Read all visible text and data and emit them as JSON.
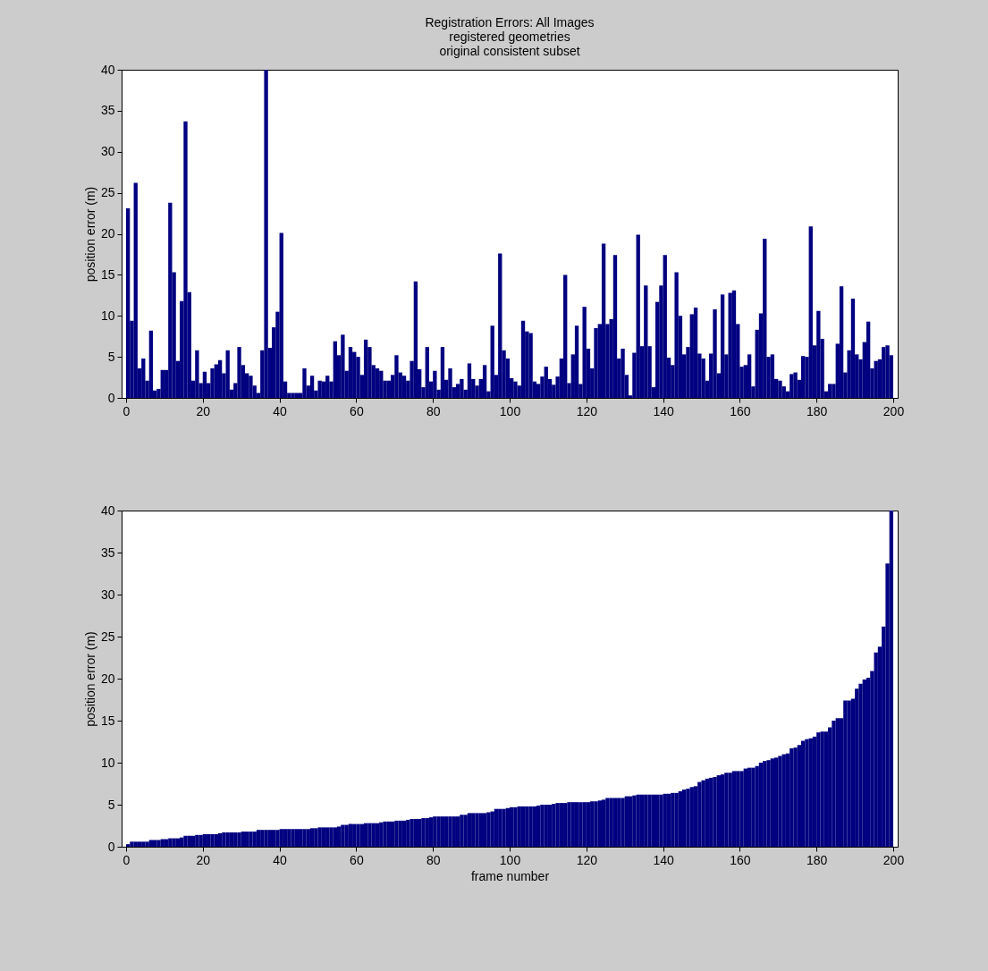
{
  "chart_data": [
    {
      "type": "bar",
      "title": "Registration Errors: All Images",
      "subtitle": "registered geometries\noriginal consistent subset",
      "ylabel": "position error (m)",
      "color": "#000080",
      "x": [
        0.5,
        1.5,
        2.5,
        3.5,
        4.5,
        5.5,
        6.5,
        7.5,
        8.5,
        9.5,
        10.5,
        11.5,
        12.5,
        13.5,
        14.5,
        15.5,
        16.5,
        17.5,
        18.5,
        19.5,
        20.5,
        21.5,
        22.5,
        23.5,
        24.5,
        25.5,
        26.5,
        27.5,
        28.5,
        29.5,
        30.5,
        31.5,
        32.5,
        33.5,
        34.5,
        35.5,
        36.5,
        37.5,
        38.5,
        39.5,
        40.5,
        41.5,
        42.5,
        43.5,
        44.5,
        45.5,
        46.5,
        47.5,
        48.5,
        49.5,
        50.5,
        51.5,
        52.5,
        53.5,
        54.5,
        55.5,
        56.5,
        57.5,
        58.5,
        59.5,
        60.5,
        61.5,
        62.5,
        63.5,
        64.5,
        65.5,
        66.5,
        67.5,
        68.5,
        69.5,
        70.5,
        71.5,
        72.5,
        73.5,
        74.5,
        75.5,
        76.5,
        77.5,
        78.5,
        79.5,
        80.5,
        81.5,
        82.5,
        83.5,
        84.5,
        85.5,
        86.5,
        87.5,
        88.5,
        89.5,
        90.5,
        91.5,
        92.5,
        93.5,
        94.5,
        95.5,
        96.5,
        97.5,
        98.5,
        99.5,
        100.5,
        101.5,
        102.5,
        103.5,
        104.5,
        105.5,
        106.5,
        107.5,
        108.5,
        109.5,
        110.5,
        111.5,
        112.5,
        113.5,
        114.5,
        115.5,
        116.5,
        117.5,
        118.5,
        119.5,
        120.5,
        121.5,
        122.5,
        123.5,
        124.5,
        125.5,
        126.5,
        127.5,
        128.5,
        129.5,
        130.5,
        131.5,
        132.5,
        133.5,
        134.5,
        135.5,
        136.5,
        137.5,
        138.5,
        139.5,
        140.5,
        141.5,
        142.5,
        143.5,
        144.5,
        145.5,
        146.5,
        147.5,
        148.5,
        149.5,
        150.5,
        151.5,
        152.5,
        153.5,
        154.5,
        155.5,
        156.5,
        157.5,
        158.5,
        159.5,
        160.5,
        161.5,
        162.5,
        163.5,
        164.5,
        165.5,
        166.5,
        167.5,
        168.5,
        169.5,
        170.5,
        171.5,
        172.5,
        173.5,
        174.5,
        175.5,
        176.5,
        177.5,
        178.5,
        179.5,
        180.5,
        181.5,
        182.5,
        183.5,
        184.5,
        185.5,
        186.5,
        187.5,
        188.5,
        189.5,
        190.5,
        191.5,
        192.5,
        193.5,
        194.5,
        195.5,
        196.5,
        197.5,
        198.5,
        199.5
      ],
      "values": [
        23.1,
        9.4,
        26.2,
        3.6,
        4.8,
        2.1,
        8.2,
        0.9,
        1.1,
        3.4,
        3.4,
        23.8,
        15.3,
        4.5,
        11.8,
        33.7,
        12.9,
        2.1,
        5.8,
        1.8,
        3.2,
        1.8,
        3.6,
        4.1,
        4.6,
        3.0,
        5.8,
        1.0,
        1.8,
        6.2,
        4.0,
        3.0,
        2.7,
        1.5,
        0.6,
        5.8,
        40,
        6.1,
        8.6,
        10.5,
        20.1,
        2.0,
        0.6,
        0.6,
        0.6,
        0.6,
        3.6,
        1.5,
        2.7,
        0.9,
        2.1,
        2.0,
        2.7,
        2.0,
        6.9,
        5.2,
        7.7,
        3.3,
        6.2,
        5.6,
        5.0,
        2.8,
        7.1,
        6.2,
        4.0,
        3.6,
        3.3,
        2.1,
        2.1,
        2.8,
        5.2,
        3.1,
        2.7,
        2.1,
        4.5,
        14.2,
        3.5,
        1.3,
        6.2,
        2.0,
        3.3,
        1.0,
        6.2,
        2.2,
        3.6,
        1.3,
        1.7,
        2.3,
        1.0,
        4.2,
        2.3,
        1.5,
        2.3,
        4.0,
        0.8,
        8.8,
        2.8,
        17.6,
        5.8,
        4.8,
        2.4,
        2.0,
        1.5,
        9.4,
        8.1,
        7.9,
        2.0,
        1.7,
        2.6,
        3.8,
        2.3,
        1.6,
        2.6,
        4.8,
        15.0,
        1.8,
        5.3,
        8.8,
        1.7,
        11.1,
        6.0,
        3.6,
        8.5,
        9.0,
        18.8,
        9.0,
        9.6,
        17.4,
        4.8,
        6.0,
        2.8,
        0.3,
        5.5,
        19.9,
        6.3,
        13.7,
        6.3,
        1.3,
        11.7,
        13.7,
        17.4,
        4.9,
        4.0,
        15.3,
        10.0,
        5.3,
        6.2,
        10.2,
        11.0,
        5.4,
        4.8,
        2.1,
        5.4,
        10.8,
        3.0,
        12.6,
        5.3,
        12.8,
        13.1,
        9.0,
        3.8,
        4.0,
        5.3,
        1.4,
        8.3,
        10.3,
        19.4,
        5.0,
        5.3,
        2.3,
        2.1,
        1.4,
        0.8,
        2.9,
        3.1,
        2.2,
        5.1,
        5.0,
        20.9,
        6.4,
        10.6,
        7.2,
        0.8,
        1.7,
        1.7,
        6.6,
        13.6,
        3.1,
        5.8,
        12.1,
        5.3,
        4.7,
        6.8,
        9.3,
        3.6,
        4.5,
        4.7,
        6.2,
        6.4,
        5.2
      ],
      "xlim": [
        0,
        200
      ],
      "xticks": [
        0,
        20,
        40,
        60,
        80,
        100,
        120,
        140,
        160,
        180,
        200
      ],
      "ylim": [
        0,
        40
      ],
      "yticks": [
        0,
        5,
        10,
        15,
        20,
        25,
        30,
        35,
        40
      ]
    },
    {
      "type": "bar",
      "xlabel": "frame number",
      "ylabel": "position error (m)",
      "color": "#000080",
      "x": [
        0.5,
        1.5,
        2.5,
        3.5,
        4.5,
        5.5,
        6.5,
        7.5,
        8.5,
        9.5,
        10.5,
        11.5,
        12.5,
        13.5,
        14.5,
        15.5,
        16.5,
        17.5,
        18.5,
        19.5,
        20.5,
        21.5,
        22.5,
        23.5,
        24.5,
        25.5,
        26.5,
        27.5,
        28.5,
        29.5,
        30.5,
        31.5,
        32.5,
        33.5,
        34.5,
        35.5,
        36.5,
        37.5,
        38.5,
        39.5,
        40.5,
        41.5,
        42.5,
        43.5,
        44.5,
        45.5,
        46.5,
        47.5,
        48.5,
        49.5,
        50.5,
        51.5,
        52.5,
        53.5,
        54.5,
        55.5,
        56.5,
        57.5,
        58.5,
        59.5,
        60.5,
        61.5,
        62.5,
        63.5,
        64.5,
        65.5,
        66.5,
        67.5,
        68.5,
        69.5,
        70.5,
        71.5,
        72.5,
        73.5,
        74.5,
        75.5,
        76.5,
        77.5,
        78.5,
        79.5,
        80.5,
        81.5,
        82.5,
        83.5,
        84.5,
        85.5,
        86.5,
        87.5,
        88.5,
        89.5,
        90.5,
        91.5,
        92.5,
        93.5,
        94.5,
        95.5,
        96.5,
        97.5,
        98.5,
        99.5,
        100.5,
        101.5,
        102.5,
        103.5,
        104.5,
        105.5,
        106.5,
        107.5,
        108.5,
        109.5,
        110.5,
        111.5,
        112.5,
        113.5,
        114.5,
        115.5,
        116.5,
        117.5,
        118.5,
        119.5,
        120.5,
        121.5,
        122.5,
        123.5,
        124.5,
        125.5,
        126.5,
        127.5,
        128.5,
        129.5,
        130.5,
        131.5,
        132.5,
        133.5,
        134.5,
        135.5,
        136.5,
        137.5,
        138.5,
        139.5,
        140.5,
        141.5,
        142.5,
        143.5,
        144.5,
        145.5,
        146.5,
        147.5,
        148.5,
        149.5,
        150.5,
        151.5,
        152.5,
        153.5,
        154.5,
        155.5,
        156.5,
        157.5,
        158.5,
        159.5,
        160.5,
        161.5,
        162.5,
        163.5,
        164.5,
        165.5,
        166.5,
        167.5,
        168.5,
        169.5,
        170.5,
        171.5,
        172.5,
        173.5,
        174.5,
        175.5,
        176.5,
        177.5,
        178.5,
        179.5,
        180.5,
        181.5,
        182.5,
        183.5,
        184.5,
        185.5,
        186.5,
        187.5,
        188.5,
        189.5,
        190.5,
        191.5,
        192.5,
        193.5,
        194.5,
        195.5,
        196.5,
        197.5,
        198.5,
        199.5
      ],
      "values": [
        0.3,
        0.6,
        0.6,
        0.6,
        0.6,
        0.6,
        0.8,
        0.8,
        0.8,
        0.9,
        0.9,
        1.0,
        1.0,
        1.0,
        1.1,
        1.3,
        1.3,
        1.3,
        1.4,
        1.4,
        1.5,
        1.5,
        1.5,
        1.5,
        1.6,
        1.7,
        1.7,
        1.7,
        1.7,
        1.7,
        1.8,
        1.8,
        1.8,
        1.8,
        2.0,
        2.0,
        2.0,
        2.0,
        2.0,
        2.0,
        2.1,
        2.1,
        2.1,
        2.1,
        2.1,
        2.1,
        2.1,
        2.1,
        2.2,
        2.2,
        2.3,
        2.3,
        2.3,
        2.3,
        2.3,
        2.4,
        2.6,
        2.6,
        2.7,
        2.7,
        2.7,
        2.7,
        2.8,
        2.8,
        2.8,
        2.8,
        2.9,
        3.0,
        3.0,
        3.0,
        3.1,
        3.1,
        3.1,
        3.2,
        3.3,
        3.3,
        3.3,
        3.4,
        3.4,
        3.5,
        3.6,
        3.6,
        3.6,
        3.6,
        3.6,
        3.6,
        3.6,
        3.8,
        3.8,
        4.0,
        4.0,
        4.0,
        4.0,
        4.0,
        4.1,
        4.2,
        4.5,
        4.5,
        4.5,
        4.6,
        4.7,
        4.7,
        4.8,
        4.8,
        4.8,
        4.8,
        4.8,
        4.9,
        5.0,
        5.0,
        5.0,
        5.1,
        5.2,
        5.2,
        5.2,
        5.3,
        5.3,
        5.3,
        5.3,
        5.3,
        5.3,
        5.4,
        5.4,
        5.5,
        5.6,
        5.8,
        5.8,
        5.8,
        5.8,
        5.8,
        6.0,
        6.0,
        6.1,
        6.2,
        6.2,
        6.2,
        6.2,
        6.2,
        6.2,
        6.2,
        6.3,
        6.3,
        6.4,
        6.4,
        6.6,
        6.8,
        6.9,
        7.1,
        7.2,
        7.7,
        7.9,
        8.1,
        8.2,
        8.3,
        8.5,
        8.6,
        8.8,
        8.8,
        9.0,
        9.0,
        9.0,
        9.3,
        9.4,
        9.4,
        9.6,
        10.0,
        10.2,
        10.3,
        10.5,
        10.6,
        10.8,
        11.0,
        11.1,
        11.7,
        11.8,
        12.1,
        12.6,
        12.8,
        12.9,
        13.1,
        13.6,
        13.7,
        13.7,
        14.2,
        15.0,
        15.3,
        15.3,
        17.4,
        17.4,
        17.6,
        18.8,
        19.4,
        19.9,
        20.1,
        20.9,
        23.1,
        23.8,
        26.2,
        33.7,
        40
      ],
      "xlim": [
        0,
        200
      ],
      "xticks": [
        0,
        20,
        40,
        60,
        80,
        100,
        120,
        140,
        160,
        180,
        200
      ],
      "ylim": [
        0,
        40
      ],
      "yticks": [
        0,
        5,
        10,
        15,
        20,
        25,
        30,
        35,
        40
      ]
    }
  ]
}
